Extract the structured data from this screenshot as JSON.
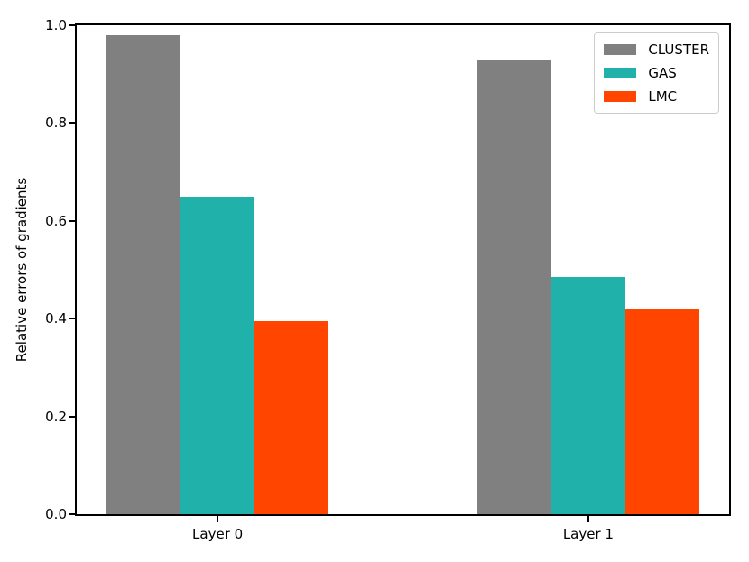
{
  "chart_data": {
    "type": "bar",
    "title": "",
    "categories": [
      "Layer 0",
      "Layer 1"
    ],
    "x_positions": [
      0,
      1
    ],
    "series": [
      {
        "name": "CLUSTER",
        "color": "#808080",
        "values": [
          0.98,
          0.93
        ]
      },
      {
        "name": "GAS",
        "color": "#20B2AA",
        "values": [
          0.65,
          0.485
        ]
      },
      {
        "name": "LMC",
        "color": "#FF4500",
        "values": [
          0.395,
          0.42
        ]
      }
    ],
    "xlabel": "",
    "ylabel": "Relative errors of gradients",
    "ylim": [
      0.0,
      1.0
    ],
    "xlim": [
      -0.38,
      1.38
    ],
    "bar_width_data": 0.2,
    "yticks": [
      "0.0",
      "0.2",
      "0.4",
      "0.6",
      "0.8",
      "1.0"
    ],
    "grid": false,
    "legend": {
      "position": "upper right",
      "entries": [
        "CLUSTER",
        "GAS",
        "LMC"
      ]
    },
    "colors": {
      "background": "#ffffff",
      "spine": "#000000",
      "legend_border": "#cccccc"
    }
  }
}
